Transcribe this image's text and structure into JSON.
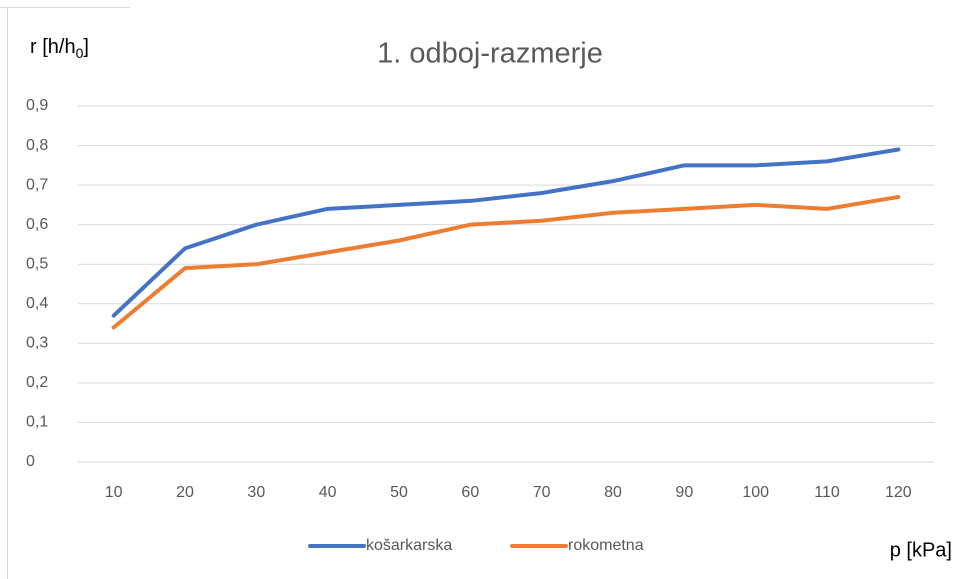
{
  "chart_data": {
    "type": "line",
    "title": "1. odboj-razmerje",
    "y_label": [
      "r [h/h",
      "0",
      "]"
    ],
    "x_label": "p [kPa]",
    "categories": [
      "10",
      "20",
      "30",
      "40",
      "50",
      "60",
      "70",
      "80",
      "90",
      "100",
      "110",
      "120"
    ],
    "series": [
      {
        "name": "košarkarska",
        "color": "#4472c4",
        "values": [
          0.37,
          0.54,
          0.6,
          0.64,
          0.65,
          0.66,
          0.68,
          0.71,
          0.75,
          0.75,
          0.76,
          0.79
        ]
      },
      {
        "name": "rokometna",
        "color": "#ed7d31",
        "values": [
          0.34,
          0.49,
          0.5,
          0.53,
          0.56,
          0.6,
          0.61,
          0.63,
          0.64,
          0.65,
          0.64,
          0.67
        ]
      }
    ],
    "ylim": [
      0,
      0.9
    ],
    "yticks": [
      0,
      {
        "value": 0.1,
        "label": "0,1"
      },
      {
        "value": 0.2,
        "label": "0,2"
      },
      {
        "value": 0.3,
        "label": "0,3"
      },
      {
        "value": 0.4,
        "label": "0,4"
      },
      {
        "value": 0.5,
        "label": "0,5"
      },
      {
        "value": 0.6,
        "label": "0,6"
      },
      {
        "value": 0.7,
        "label": "0,7"
      },
      {
        "value": 0.8,
        "label": "0,8"
      },
      {
        "value": 0.9,
        "label": "0,9"
      }
    ],
    "grid": true,
    "legend": "bottom"
  }
}
